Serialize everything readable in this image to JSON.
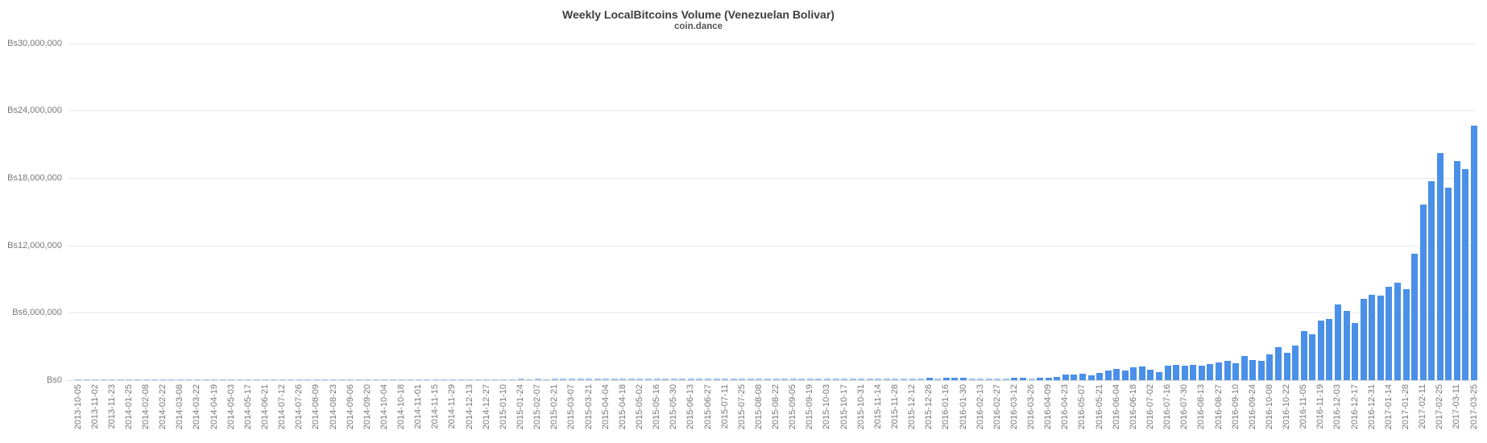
{
  "colors": {
    "bar": "#4a90e8",
    "grid": "#e8e8e8",
    "zero_line": "#dcdcdc",
    "axis_text": "#787878",
    "title_text": "#3d3d3d"
  },
  "chart_data": {
    "type": "bar",
    "title": "Weekly LocalBitcoins Volume (Venezuelan Bolivar)",
    "subtitle": "coin.dance",
    "xlabel": "",
    "ylabel": "",
    "currency_prefix": "Bs",
    "ylim": [
      0,
      30000000
    ],
    "grid": true,
    "legend": "none",
    "x_tick_style": "rotated-90, one tick label per two weekly bars",
    "y_ticks": [
      0,
      6000000,
      12000000,
      18000000,
      24000000,
      30000000
    ],
    "y_tick_labels": [
      "Bs0",
      "Bs6,000,000",
      "Bs12,000,000",
      "Bs18,000,000",
      "Bs24,000,000",
      "Bs30,000,000"
    ],
    "points": [
      [
        "2013-10-05",
        15000
      ],
      [
        "",
        20000
      ],
      [
        "2013-11-02",
        25000
      ],
      [
        "",
        20000
      ],
      [
        "2013-11-23",
        30000
      ],
      [
        "",
        25000
      ],
      [
        "2014-01-25",
        35000
      ],
      [
        "",
        30000
      ],
      [
        "2014-02-08",
        40000
      ],
      [
        "",
        35000
      ],
      [
        "2014-02-22",
        30000
      ],
      [
        "",
        40000
      ],
      [
        "2014-03-08",
        45000
      ],
      [
        "",
        35000
      ],
      [
        "2014-03-22",
        50000
      ],
      [
        "",
        40000
      ],
      [
        "2014-04-19",
        45000
      ],
      [
        "",
        50000
      ],
      [
        "2014-05-03",
        55000
      ],
      [
        "",
        45000
      ],
      [
        "2014-05-17",
        60000
      ],
      [
        "",
        50000
      ],
      [
        "2014-06-21",
        55000
      ],
      [
        "",
        60000
      ],
      [
        "2014-07-12",
        65000
      ],
      [
        "",
        55000
      ],
      [
        "2014-07-26",
        70000
      ],
      [
        "",
        60000
      ],
      [
        "2014-08-09",
        65000
      ],
      [
        "",
        70000
      ],
      [
        "2014-08-23",
        75000
      ],
      [
        "",
        65000
      ],
      [
        "2014-09-06",
        80000
      ],
      [
        "",
        70000
      ],
      [
        "2014-09-20",
        75000
      ],
      [
        "",
        80000
      ],
      [
        "2014-10-04",
        85000
      ],
      [
        "",
        75000
      ],
      [
        "2014-10-18",
        90000
      ],
      [
        "",
        80000
      ],
      [
        "2014-11-01",
        85000
      ],
      [
        "",
        90000
      ],
      [
        "2014-11-15",
        95000
      ],
      [
        "",
        85000
      ],
      [
        "2014-11-29",
        100000
      ],
      [
        "",
        90000
      ],
      [
        "2014-12-13",
        95000
      ],
      [
        "",
        100000
      ],
      [
        "2014-12-27",
        105000
      ],
      [
        "",
        95000
      ],
      [
        "2015-01-10",
        100000
      ],
      [
        "",
        105000
      ],
      [
        "2015-01-24",
        110000
      ],
      [
        "",
        100000
      ],
      [
        "2015-02-07",
        115000
      ],
      [
        "",
        105000
      ],
      [
        "2015-02-21",
        110000
      ],
      [
        "",
        115000
      ],
      [
        "2015-03-07",
        120000
      ],
      [
        "",
        110000
      ],
      [
        "2015-03-21",
        125000
      ],
      [
        "",
        115000
      ],
      [
        "2015-04-04",
        120000
      ],
      [
        "",
        125000
      ],
      [
        "2015-04-18",
        130000
      ],
      [
        "",
        120000
      ],
      [
        "2015-05-02",
        125000
      ],
      [
        "",
        130000
      ],
      [
        "2015-05-16",
        135000
      ],
      [
        "",
        125000
      ],
      [
        "2015-05-30",
        130000
      ],
      [
        "",
        135000
      ],
      [
        "2015-06-13",
        140000
      ],
      [
        "",
        130000
      ],
      [
        "2015-06-27",
        135000
      ],
      [
        "",
        140000
      ],
      [
        "2015-07-11",
        145000
      ],
      [
        "",
        135000
      ],
      [
        "2015-07-25",
        140000
      ],
      [
        "",
        145000
      ],
      [
        "2015-08-08",
        150000
      ],
      [
        "",
        140000
      ],
      [
        "2015-08-22",
        145000
      ],
      [
        "",
        150000
      ],
      [
        "2015-09-05",
        155000
      ],
      [
        "",
        145000
      ],
      [
        "2015-09-19",
        150000
      ],
      [
        "",
        155000
      ],
      [
        "2015-10-03",
        160000
      ],
      [
        "",
        150000
      ],
      [
        "2015-10-17",
        155000
      ],
      [
        "",
        160000
      ],
      [
        "2015-10-31",
        165000
      ],
      [
        "",
        155000
      ],
      [
        "2015-11-14",
        160000
      ],
      [
        "",
        165000
      ],
      [
        "2015-11-28",
        170000
      ],
      [
        "",
        160000
      ],
      [
        "2015-12-12",
        170000
      ],
      [
        "",
        160000
      ],
      [
        "2015-12-26",
        180000
      ],
      [
        "",
        170000
      ],
      [
        "2016-01-16",
        200000
      ],
      [
        "",
        190000
      ],
      [
        "2016-01-30",
        210000
      ],
      [
        "",
        170000
      ],
      [
        "2016-02-13",
        130000
      ],
      [
        "",
        160000
      ],
      [
        "2016-02-27",
        120000
      ],
      [
        "",
        140000
      ],
      [
        "2016-03-12",
        210000
      ],
      [
        "",
        230000
      ],
      [
        "2016-03-26",
        170000
      ],
      [
        "",
        230000
      ],
      [
        "2016-04-09",
        220000
      ],
      [
        "",
        290000
      ],
      [
        "2016-04-23",
        480000
      ],
      [
        "",
        530000
      ],
      [
        "2016-05-07",
        600000
      ],
      [
        "",
        430000
      ],
      [
        "2016-05-21",
        670000
      ],
      [
        "",
        840000
      ],
      [
        "2016-06-04",
        1000000
      ],
      [
        "",
        840000
      ],
      [
        "2016-06-18",
        1150000
      ],
      [
        "",
        1250000
      ],
      [
        "2016-07-02",
        960000
      ],
      [
        "",
        720000
      ],
      [
        "2016-07-16",
        1320000
      ],
      [
        "",
        1390000
      ],
      [
        "2016-07-30",
        1320000
      ],
      [
        "",
        1340000
      ],
      [
        "2016-08-13",
        1270000
      ],
      [
        "",
        1410000
      ],
      [
        "2016-08-27",
        1580000
      ],
      [
        "",
        1700000
      ],
      [
        "2016-09-10",
        1530000
      ],
      [
        "",
        2130000
      ],
      [
        "2016-09-24",
        1800000
      ],
      [
        "",
        1750000
      ],
      [
        "2016-10-08",
        2300000
      ],
      [
        "",
        2950000
      ],
      [
        "2016-10-22",
        2420000
      ],
      [
        "",
        3070000
      ],
      [
        "2016-11-05",
        4340000
      ],
      [
        "",
        4120000
      ],
      [
        "2016-11-19",
        5300000
      ],
      [
        "",
        5420000
      ],
      [
        "2016-12-03",
        6740000
      ],
      [
        "",
        6140000
      ],
      [
        "2016-12-17",
        5110000
      ],
      [
        "",
        7270000
      ],
      [
        "2016-12-31",
        7580000
      ],
      [
        "",
        7500000
      ],
      [
        "2017-01-14",
        8300000
      ],
      [
        "",
        8700000
      ],
      [
        "2017-01-28",
        8110000
      ],
      [
        "",
        11270000
      ],
      [
        "2017-02-11",
        15610000
      ],
      [
        "",
        17700000
      ],
      [
        "2017-02-25",
        20230000
      ],
      [
        "",
        17120000
      ],
      [
        "2017-03-11",
        19520000
      ],
      [
        "",
        18800000
      ],
      [
        "2017-03-25",
        22620000
      ]
    ]
  }
}
